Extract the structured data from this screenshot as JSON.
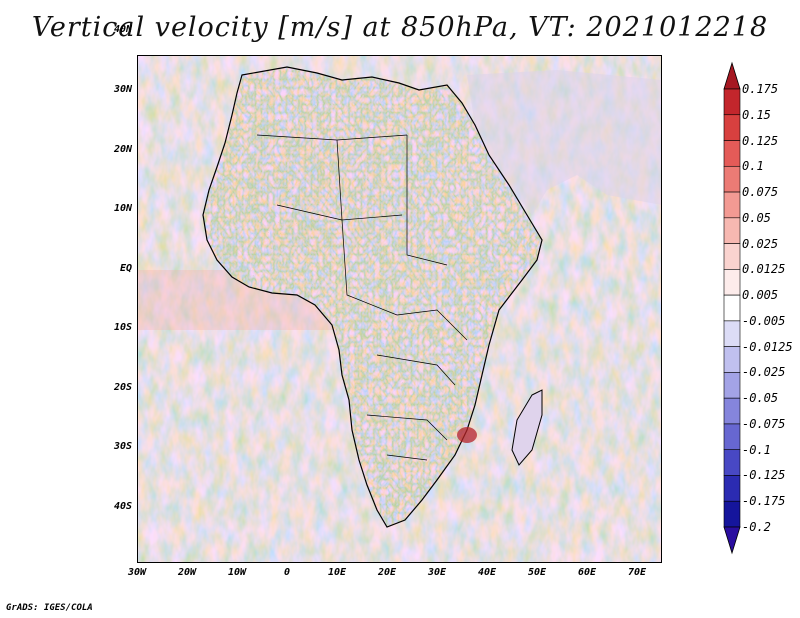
{
  "title": "Vertical velocity [m/s] at 850hPa, VT: 2021012218",
  "y_axis_labels": [
    "40N",
    "30N",
    "20N",
    "10N",
    "EQ",
    "10S",
    "20S",
    "30S",
    "40S"
  ],
  "x_axis_labels": [
    "30W",
    "20W",
    "10W",
    "0",
    "10E",
    "20E",
    "30E",
    "40E",
    "50E",
    "60E",
    "70E"
  ],
  "colorbar": {
    "labels": [
      "0.175",
      "0.15",
      "0.125",
      "0.1",
      "0.075",
      "0.05",
      "0.025",
      "0.0125",
      "0.005",
      "-0.005",
      "-0.0125",
      "-0.025",
      "-0.05",
      "-0.075",
      "-0.1",
      "-0.125",
      "-0.175",
      "-0.2"
    ],
    "colors": [
      "#a61822",
      "#c3262c",
      "#d8403f",
      "#e45b58",
      "#ec7b75",
      "#f39a93",
      "#f7b8b1",
      "#fad3cf",
      "#fdeceb",
      "#ffffff",
      "#dcdcf6",
      "#c0c0ef",
      "#a3a3e6",
      "#8585dc",
      "#6767d1",
      "#4848c4",
      "#2b2bb2",
      "#15159c",
      "#2a0ea0"
    ]
  },
  "credit": "GrADS: IGES/COLA"
}
